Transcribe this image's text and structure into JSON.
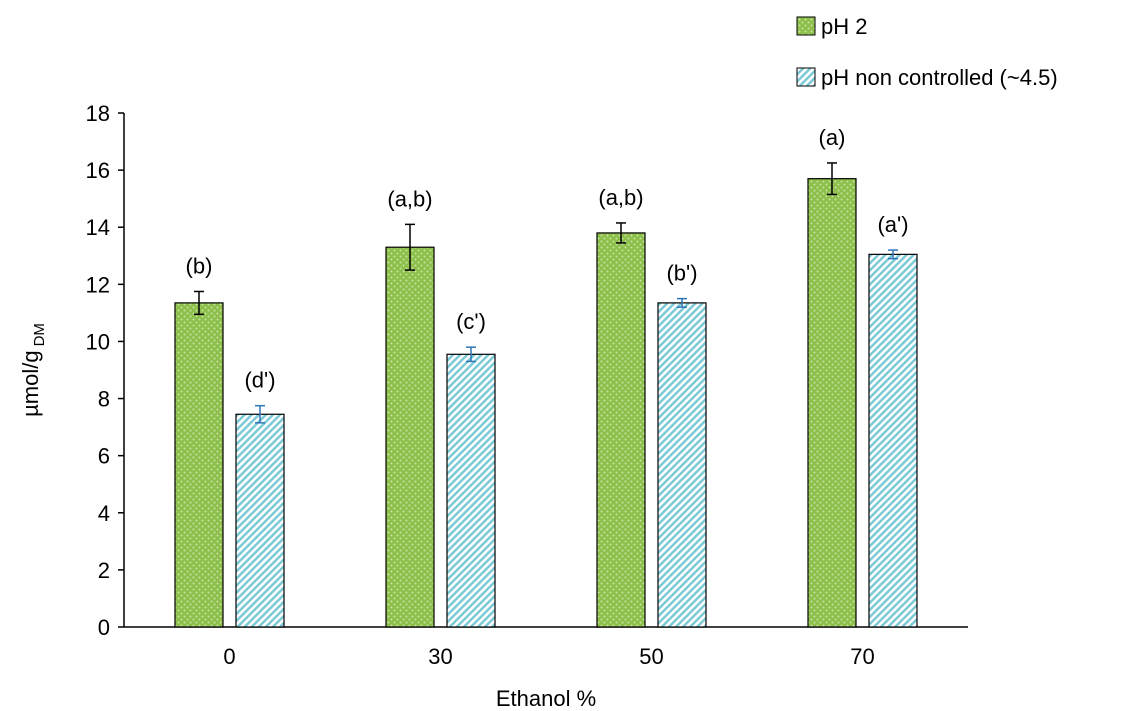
{
  "chart_data": {
    "type": "bar",
    "xlabel": "Ethanol %",
    "ylabel": "µmol/g",
    "ylabel_sub": "DM",
    "ylim": [
      0,
      18
    ],
    "yticks": [
      0,
      2,
      4,
      6,
      8,
      10,
      12,
      14,
      16,
      18
    ],
    "categories": [
      "0",
      "30",
      "50",
      "70"
    ],
    "grid": false,
    "legend_position": "top-right",
    "series": [
      {
        "name": "pH 2",
        "color": "#8dc04a",
        "pattern": "dotted-green",
        "error_color": "#000000",
        "values": [
          11.35,
          13.3,
          13.8,
          15.7
        ],
        "errors": [
          0.4,
          0.8,
          0.35,
          0.55
        ],
        "labels": [
          "(b)",
          "(a,b)",
          "(a,b)",
          "(a)"
        ]
      },
      {
        "name": "pH non controlled (~4.5)",
        "color": "#a8dde6",
        "pattern": "diagonal-cyan",
        "error_color": "#2e75b6",
        "values": [
          7.45,
          9.55,
          11.35,
          13.05
        ],
        "errors": [
          0.3,
          0.25,
          0.15,
          0.15
        ],
        "labels": [
          "(d')",
          "(c')",
          "(b')",
          "(a')"
        ]
      }
    ]
  }
}
